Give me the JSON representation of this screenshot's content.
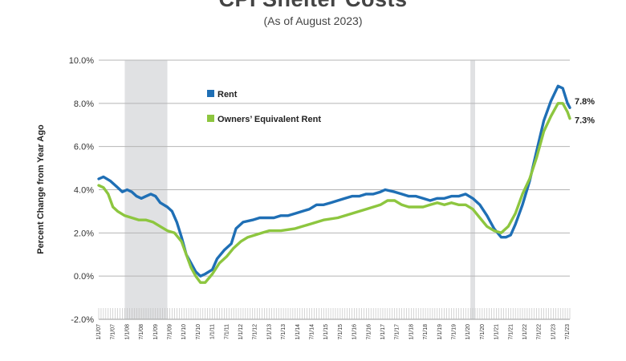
{
  "chart_data": {
    "type": "line",
    "title": "CPI Shelter Costs",
    "subtitle": "(As of August 2023)",
    "ylabel": "Percent Change from Year Ago",
    "ylim": [
      -2.0,
      10.0
    ],
    "yticks": [
      "-2.0%",
      "0.0%",
      "2.0%",
      "4.0%",
      "6.0%",
      "8.0%",
      "10.0%"
    ],
    "xlim": [
      "2007-01",
      "2023-08"
    ],
    "xticks": [
      "1/1/07",
      "7/1/07",
      "1/1/08",
      "7/1/08",
      "1/1/09",
      "7/1/09",
      "1/1/10",
      "7/1/10",
      "1/1/11",
      "7/1/11",
      "1/1/12",
      "7/1/12",
      "1/1/13",
      "7/1/13",
      "1/1/14",
      "7/1/14",
      "1/1/15",
      "7/1/15",
      "1/1/16",
      "7/1/16",
      "1/1/17",
      "7/1/17",
      "1/1/18",
      "7/1/18",
      "1/1/19",
      "7/1/19",
      "1/1/20",
      "7/1/20",
      "1/1/21",
      "7/1/21",
      "1/1/22",
      "7/1/22",
      "1/1/23",
      "7/1/23"
    ],
    "recessions": [
      [
        "2007-12",
        "2009-06"
      ],
      [
        "2020-02",
        "2020-04"
      ]
    ],
    "legend_position": "upper-left",
    "grid": true,
    "series": [
      {
        "name": "Rent",
        "color": "#1f6fb5",
        "end_label": "7.8%",
        "points": [
          [
            "2007-01",
            4.5
          ],
          [
            "2007-03",
            4.6
          ],
          [
            "2007-06",
            4.4
          ],
          [
            "2007-09",
            4.1
          ],
          [
            "2007-11",
            3.9
          ],
          [
            "2008-01",
            4.0
          ],
          [
            "2008-03",
            3.9
          ],
          [
            "2008-05",
            3.7
          ],
          [
            "2008-07",
            3.6
          ],
          [
            "2008-09",
            3.7
          ],
          [
            "2008-11",
            3.8
          ],
          [
            "2009-01",
            3.7
          ],
          [
            "2009-03",
            3.4
          ],
          [
            "2009-06",
            3.2
          ],
          [
            "2009-08",
            3.0
          ],
          [
            "2009-10",
            2.5
          ],
          [
            "2009-12",
            1.8
          ],
          [
            "2010-02",
            1.0
          ],
          [
            "2010-04",
            0.6
          ],
          [
            "2010-06",
            0.2
          ],
          [
            "2010-08",
            0.0
          ],
          [
            "2010-10",
            0.1
          ],
          [
            "2011-01",
            0.3
          ],
          [
            "2011-03",
            0.8
          ],
          [
            "2011-06",
            1.2
          ],
          [
            "2011-09",
            1.5
          ],
          [
            "2011-11",
            2.2
          ],
          [
            "2012-02",
            2.5
          ],
          [
            "2012-06",
            2.6
          ],
          [
            "2012-09",
            2.7
          ],
          [
            "2012-12",
            2.7
          ],
          [
            "2013-03",
            2.7
          ],
          [
            "2013-06",
            2.8
          ],
          [
            "2013-09",
            2.8
          ],
          [
            "2013-12",
            2.9
          ],
          [
            "2014-03",
            3.0
          ],
          [
            "2014-06",
            3.1
          ],
          [
            "2014-09",
            3.3
          ],
          [
            "2014-12",
            3.3
          ],
          [
            "2015-03",
            3.4
          ],
          [
            "2015-06",
            3.5
          ],
          [
            "2015-09",
            3.6
          ],
          [
            "2015-12",
            3.7
          ],
          [
            "2016-03",
            3.7
          ],
          [
            "2016-06",
            3.8
          ],
          [
            "2016-09",
            3.8
          ],
          [
            "2016-12",
            3.9
          ],
          [
            "2017-02",
            4.0
          ],
          [
            "2017-06",
            3.9
          ],
          [
            "2017-09",
            3.8
          ],
          [
            "2017-12",
            3.7
          ],
          [
            "2018-03",
            3.7
          ],
          [
            "2018-06",
            3.6
          ],
          [
            "2018-09",
            3.5
          ],
          [
            "2018-12",
            3.6
          ],
          [
            "2019-03",
            3.6
          ],
          [
            "2019-06",
            3.7
          ],
          [
            "2019-09",
            3.7
          ],
          [
            "2019-12",
            3.8
          ],
          [
            "2020-03",
            3.6
          ],
          [
            "2020-06",
            3.3
          ],
          [
            "2020-09",
            2.8
          ],
          [
            "2020-12",
            2.2
          ],
          [
            "2021-03",
            1.8
          ],
          [
            "2021-05",
            1.8
          ],
          [
            "2021-07",
            1.9
          ],
          [
            "2021-09",
            2.4
          ],
          [
            "2021-12",
            3.3
          ],
          [
            "2022-03",
            4.4
          ],
          [
            "2022-06",
            5.8
          ],
          [
            "2022-09",
            7.2
          ],
          [
            "2022-12",
            8.1
          ],
          [
            "2023-03",
            8.8
          ],
          [
            "2023-05",
            8.7
          ],
          [
            "2023-07",
            8.0
          ],
          [
            "2023-08",
            7.8
          ]
        ]
      },
      {
        "name": "Owners’ Equivalent Rent",
        "color": "#8dc63f",
        "end_label": "7.3%",
        "points": [
          [
            "2007-01",
            4.2
          ],
          [
            "2007-03",
            4.1
          ],
          [
            "2007-05",
            3.8
          ],
          [
            "2007-07",
            3.2
          ],
          [
            "2007-09",
            3.0
          ],
          [
            "2007-12",
            2.8
          ],
          [
            "2008-03",
            2.7
          ],
          [
            "2008-06",
            2.6
          ],
          [
            "2008-09",
            2.6
          ],
          [
            "2008-12",
            2.5
          ],
          [
            "2009-03",
            2.3
          ],
          [
            "2009-06",
            2.1
          ],
          [
            "2009-09",
            2.0
          ],
          [
            "2009-12",
            1.6
          ],
          [
            "2010-02",
            1.0
          ],
          [
            "2010-04",
            0.4
          ],
          [
            "2010-06",
            0.0
          ],
          [
            "2010-08",
            -0.3
          ],
          [
            "2010-10",
            -0.3
          ],
          [
            "2011-01",
            0.1
          ],
          [
            "2011-04",
            0.6
          ],
          [
            "2011-07",
            0.9
          ],
          [
            "2011-10",
            1.3
          ],
          [
            "2012-01",
            1.6
          ],
          [
            "2012-04",
            1.8
          ],
          [
            "2012-07",
            1.9
          ],
          [
            "2012-10",
            2.0
          ],
          [
            "2013-01",
            2.1
          ],
          [
            "2013-06",
            2.1
          ],
          [
            "2013-12",
            2.2
          ],
          [
            "2014-06",
            2.4
          ],
          [
            "2014-12",
            2.6
          ],
          [
            "2015-06",
            2.7
          ],
          [
            "2015-12",
            2.9
          ],
          [
            "2016-06",
            3.1
          ],
          [
            "2016-12",
            3.3
          ],
          [
            "2017-03",
            3.5
          ],
          [
            "2017-06",
            3.5
          ],
          [
            "2017-09",
            3.3
          ],
          [
            "2017-12",
            3.2
          ],
          [
            "2018-03",
            3.2
          ],
          [
            "2018-06",
            3.2
          ],
          [
            "2018-09",
            3.3
          ],
          [
            "2018-12",
            3.4
          ],
          [
            "2019-03",
            3.3
          ],
          [
            "2019-06",
            3.4
          ],
          [
            "2019-09",
            3.3
          ],
          [
            "2019-12",
            3.3
          ],
          [
            "2020-03",
            3.1
          ],
          [
            "2020-06",
            2.7
          ],
          [
            "2020-09",
            2.3
          ],
          [
            "2020-12",
            2.1
          ],
          [
            "2021-03",
            2.0
          ],
          [
            "2021-06",
            2.3
          ],
          [
            "2021-09",
            2.9
          ],
          [
            "2021-12",
            3.8
          ],
          [
            "2022-03",
            4.5
          ],
          [
            "2022-06",
            5.5
          ],
          [
            "2022-09",
            6.7
          ],
          [
            "2022-12",
            7.4
          ],
          [
            "2023-03",
            8.0
          ],
          [
            "2023-05",
            8.0
          ],
          [
            "2023-07",
            7.6
          ],
          [
            "2023-08",
            7.3
          ]
        ]
      }
    ]
  }
}
